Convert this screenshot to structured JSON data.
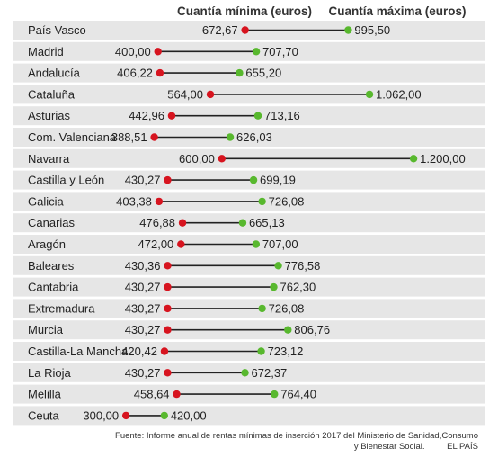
{
  "chart_data": {
    "type": "dumbbell",
    "headers": {
      "min": "Cuantía mínima (euros)",
      "max": "Cuantía máxima (euros)"
    },
    "colors": {
      "min": "#d7141f",
      "max": "#58b82e",
      "connector": "#222222",
      "band": "#e6e6e6"
    },
    "rows": [
      {
        "region": "País Vasco",
        "min": 672.67,
        "min_label": "672,67",
        "max": 995.5,
        "max_label": "995,50"
      },
      {
        "region": "Madrid",
        "min": 400.0,
        "min_label": "400,00",
        "max": 707.7,
        "max_label": "707,70"
      },
      {
        "region": "Andalucía",
        "min": 406.22,
        "min_label": "406,22",
        "max": 655.2,
        "max_label": "655,20"
      },
      {
        "region": "Cataluña",
        "min": 564.0,
        "min_label": "564,00",
        "max": 1062.0,
        "max_label": "1.062,00"
      },
      {
        "region": "Asturias",
        "min": 442.96,
        "min_label": "442,96",
        "max": 713.16,
        "max_label": "713,16"
      },
      {
        "region": "Com. Valenciana",
        "min": 388.51,
        "min_label": "388,51",
        "max": 626.03,
        "max_label": "626,03"
      },
      {
        "region": "Navarra",
        "min": 600.0,
        "min_label": "600,00",
        "max": 1200.0,
        "max_label": "1.200,00"
      },
      {
        "region": "Castilla y León",
        "min": 430.27,
        "min_label": "430,27",
        "max": 699.19,
        "max_label": "699,19"
      },
      {
        "region": "Galicia",
        "min": 403.38,
        "min_label": "403,38",
        "max": 726.08,
        "max_label": "726,08"
      },
      {
        "region": "Canarias",
        "min": 476.88,
        "min_label": "476,88",
        "max": 665.13,
        "max_label": "665,13"
      },
      {
        "region": "Aragón",
        "min": 472.0,
        "min_label": "472,00",
        "max": 707.0,
        "max_label": "707,00"
      },
      {
        "region": "Baleares",
        "min": 430.36,
        "min_label": "430,36",
        "max": 776.58,
        "max_label": "776,58"
      },
      {
        "region": "Cantabria",
        "min": 430.27,
        "min_label": "430,27",
        "max": 762.3,
        "max_label": "762,30"
      },
      {
        "region": "Extremadura",
        "min": 430.27,
        "min_label": "430,27",
        "max": 726.08,
        "max_label": "726,08"
      },
      {
        "region": "Murcia",
        "min": 430.27,
        "min_label": "430,27",
        "max": 806.76,
        "max_label": "806,76"
      },
      {
        "region": "Castilla-La Mancha",
        "min": 420.42,
        "min_label": "420,42",
        "max": 723.12,
        "max_label": "723,12"
      },
      {
        "region": "La Rioja",
        "min": 430.27,
        "min_label": "430,27",
        "max": 672.37,
        "max_label": "672,37"
      },
      {
        "region": "Melilla",
        "min": 458.64,
        "min_label": "458,64",
        "max": 764.4,
        "max_label": "764,40"
      },
      {
        "region": "Ceuta",
        "min": 300.0,
        "min_label": "300,00",
        "max": 420.0,
        "max_label": "420,00"
      }
    ]
  },
  "source": {
    "line1": "Fuente: Informe anual de rentas mínimas de inserción 2017 del Ministerio de Sanidad,Consumo",
    "line2": "y Bienestar Social.",
    "credit": "EL PAÍS"
  }
}
